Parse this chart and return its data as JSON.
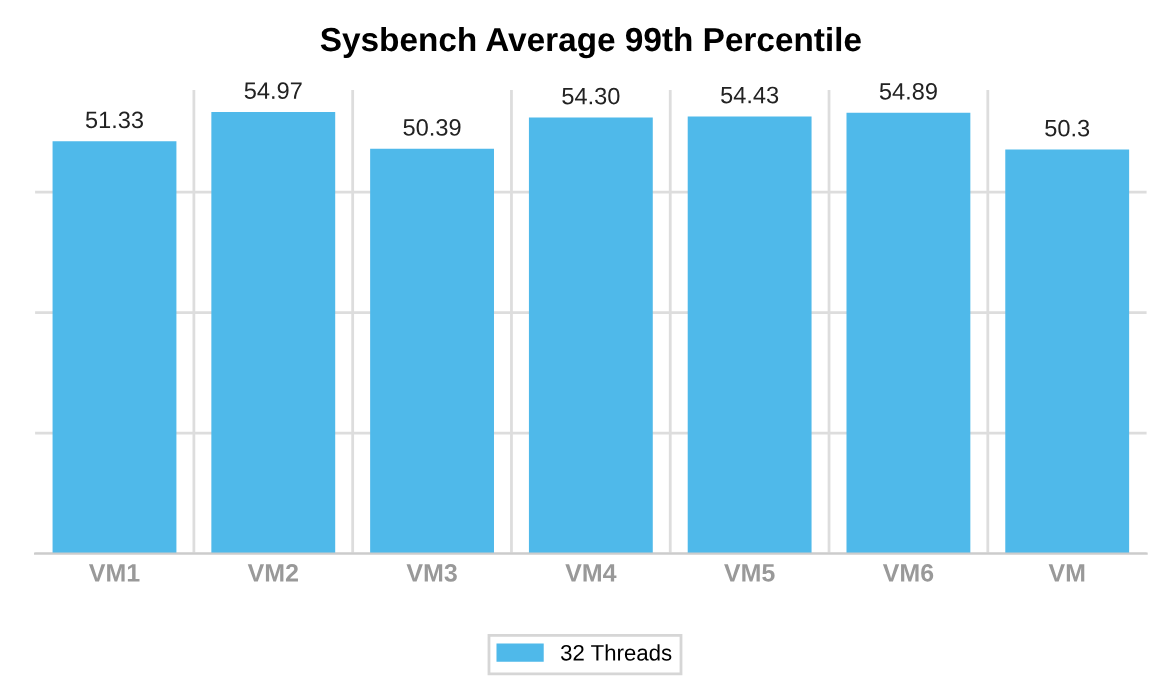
{
  "chart_data": {
    "type": "bar",
    "title": "Sysbench Average 99th Percentile",
    "categories": [
      "VM1",
      "VM2",
      "VM3",
      "VM4",
      "VM5",
      "VM6",
      "VM"
    ],
    "series": [
      {
        "name": "32 Threads",
        "color": "#4fb9ea",
        "values": [
          51.33,
          54.97,
          50.39,
          54.3,
          54.43,
          54.89,
          50.3
        ],
        "value_labels": [
          "51.33",
          "54.97",
          "50.39",
          "54.30",
          "54.43",
          "54.89",
          "50.3"
        ]
      }
    ],
    "grid": true,
    "legend": "bottom",
    "tick_labels": "x"
  }
}
